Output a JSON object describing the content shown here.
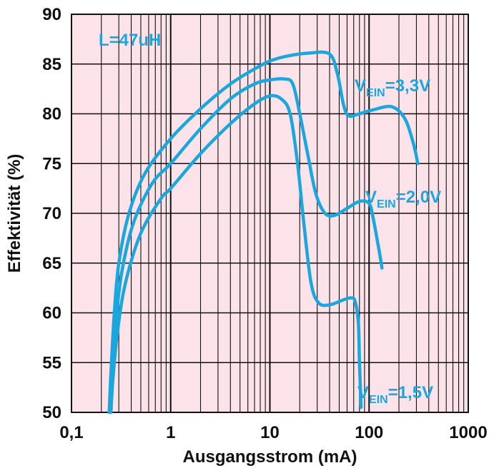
{
  "chart_data": {
    "type": "line",
    "xscale": "log",
    "xlim": [
      0.1,
      1000
    ],
    "ylim": [
      50,
      90
    ],
    "xlabel": "Ausgangsstrom (mA)",
    "ylabel": "Effektivität (%)",
    "x_ticks": [
      "0,1",
      "1",
      "10",
      "100",
      "1000"
    ],
    "y_ticks": [
      "90",
      "85",
      "80",
      "75",
      "70",
      "65",
      "60",
      "55",
      "50"
    ],
    "grid": true,
    "colors": {
      "plot_bg": "#fbe3e9",
      "grid": "#111111",
      "series": "#1aa7e0"
    },
    "annotation": "L=47uH",
    "series": [
      {
        "label_main": "V",
        "label_sub": "EIN",
        "label_value": "=3,3V",
        "points": [
          [
            0.24,
            50
          ],
          [
            0.25,
            54
          ],
          [
            0.27,
            60
          ],
          [
            0.3,
            65
          ],
          [
            0.38,
            70
          ],
          [
            0.55,
            74
          ],
          [
            1,
            77.5
          ],
          [
            2,
            80.5
          ],
          [
            4,
            83
          ],
          [
            7,
            84.5
          ],
          [
            10,
            85.3
          ],
          [
            15,
            85.8
          ],
          [
            25,
            86.1
          ],
          [
            40,
            86
          ],
          [
            48,
            84
          ],
          [
            55,
            81
          ],
          [
            62,
            79.8
          ],
          [
            80,
            80
          ],
          [
            110,
            80.4
          ],
          [
            170,
            80.7
          ],
          [
            230,
            79.5
          ],
          [
            280,
            77
          ],
          [
            310,
            75
          ]
        ]
      },
      {
        "label_main": "V",
        "label_sub": "EIN",
        "label_value": "=2,0V",
        "points": [
          [
            0.24,
            50
          ],
          [
            0.25,
            53
          ],
          [
            0.28,
            59
          ],
          [
            0.32,
            64
          ],
          [
            0.42,
            69
          ],
          [
            0.65,
            73
          ],
          [
            1,
            75
          ],
          [
            2,
            78.5
          ],
          [
            4,
            81.5
          ],
          [
            7,
            83
          ],
          [
            10,
            83.4
          ],
          [
            14,
            83.5
          ],
          [
            17,
            83
          ],
          [
            20,
            80
          ],
          [
            24,
            76
          ],
          [
            29,
            72
          ],
          [
            36,
            70
          ],
          [
            45,
            69.8
          ],
          [
            60,
            70.5
          ],
          [
            80,
            71.2
          ],
          [
            100,
            71
          ],
          [
            110,
            69.5
          ],
          [
            125,
            66.5
          ],
          [
            135,
            64.5
          ]
        ]
      },
      {
        "label_main": "V",
        "label_sub": "EIN",
        "label_value": "=1,5V",
        "points": [
          [
            0.25,
            50
          ],
          [
            0.26,
            53
          ],
          [
            0.29,
            58
          ],
          [
            0.35,
            63
          ],
          [
            0.5,
            68
          ],
          [
            0.8,
            71.5
          ],
          [
            1,
            72.5
          ],
          [
            2,
            76
          ],
          [
            4,
            79
          ],
          [
            7,
            81
          ],
          [
            10,
            81.8
          ],
          [
            13,
            81.5
          ],
          [
            16,
            80
          ],
          [
            19,
            75
          ],
          [
            22,
            69
          ],
          [
            26,
            63
          ],
          [
            31,
            61
          ],
          [
            40,
            60.8
          ],
          [
            55,
            61.3
          ],
          [
            65,
            61.5
          ],
          [
            72,
            61.2
          ],
          [
            78,
            59
          ],
          [
            80,
            55
          ],
          [
            82,
            52
          ],
          [
            83,
            50.5
          ]
        ]
      }
    ]
  }
}
